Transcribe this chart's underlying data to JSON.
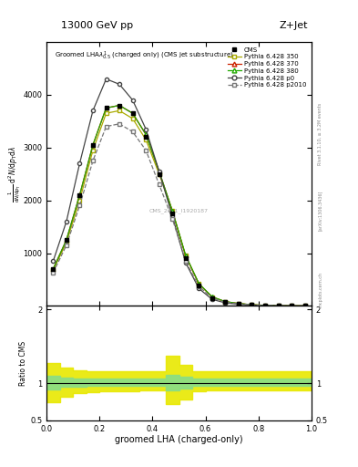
{
  "title_top": "13000 GeV pp",
  "title_right": "Z+Jet",
  "plot_title": "Groomed LHA$\\lambda^{1}_{0.5}$ (charged only) (CMS jet substructure)",
  "xlabel": "groomed LHA (charged-only)",
  "ylabel_ratio": "Ratio to CMS",
  "rivet_label": "Rivet 3.1.10, ≥ 3.2M events",
  "arxiv_label": "[arXiv:1306.3436]",
  "mcplots_label": "mcplots.cern.ch",
  "cms_id_label": "CMS_2021_I1920187",
  "x_data": [
    0.025,
    0.075,
    0.125,
    0.175,
    0.225,
    0.275,
    0.325,
    0.375,
    0.425,
    0.475,
    0.525,
    0.575,
    0.625,
    0.675,
    0.725,
    0.775,
    0.825,
    0.875,
    0.925,
    0.975
  ],
  "cms_y": [
    700,
    1250,
    2100,
    3050,
    3750,
    3800,
    3650,
    3200,
    2500,
    1750,
    900,
    380,
    150,
    70,
    40,
    20,
    10,
    5,
    2,
    0.5
  ],
  "p350_y": [
    680,
    1200,
    2000,
    2950,
    3650,
    3700,
    3550,
    3150,
    2500,
    1800,
    950,
    420,
    170,
    80,
    45,
    22,
    11,
    5,
    2,
    0.5
  ],
  "p370_y": [
    700,
    1250,
    2100,
    3050,
    3750,
    3800,
    3650,
    3250,
    2550,
    1800,
    950,
    420,
    170,
    80,
    45,
    22,
    11,
    5,
    2,
    0.5
  ],
  "p380_y": [
    700,
    1250,
    2100,
    3050,
    3750,
    3800,
    3650,
    3250,
    2550,
    1800,
    960,
    425,
    172,
    82,
    46,
    23,
    11,
    5,
    2,
    0.5
  ],
  "pp0_y": [
    850,
    1600,
    2700,
    3700,
    4300,
    4200,
    3900,
    3350,
    2550,
    1700,
    820,
    330,
    125,
    58,
    32,
    16,
    8,
    4,
    1.5,
    0.5
  ],
  "pp2010_y": [
    630,
    1150,
    1900,
    2750,
    3400,
    3450,
    3300,
    2950,
    2300,
    1650,
    850,
    370,
    150,
    70,
    40,
    20,
    10,
    5,
    2,
    0.5
  ],
  "colors": {
    "cms": "#000000",
    "p350": "#aaaa00",
    "p370": "#cc2200",
    "p380": "#22aa00",
    "pp0": "#444444",
    "pp2010": "#777777"
  },
  "ylim_main": [
    0,
    5000
  ],
  "ylim_ratio": [
    0.5,
    2.05
  ],
  "xlim": [
    0,
    1
  ],
  "yticks_main": [
    1000,
    2000,
    3000,
    4000
  ],
  "yticks_ratio": [
    0.5,
    1.0,
    2.0
  ],
  "yellow_lo": [
    0.75,
    0.82,
    0.87,
    0.88,
    0.89,
    0.89,
    0.89,
    0.9,
    0.91,
    0.72,
    0.78,
    0.89,
    0.9,
    0.9,
    0.9,
    0.9,
    0.9,
    0.9,
    0.9,
    0.9
  ],
  "yellow_hi": [
    1.28,
    1.22,
    1.18,
    1.17,
    1.17,
    1.17,
    1.17,
    1.17,
    1.17,
    1.38,
    1.25,
    1.17,
    1.17,
    1.17,
    1.17,
    1.17,
    1.17,
    1.17,
    1.17,
    1.17
  ],
  "green_lo": [
    0.92,
    0.95,
    0.96,
    0.97,
    0.97,
    0.97,
    0.97,
    0.97,
    0.97,
    0.9,
    0.93,
    0.97,
    0.97,
    0.97,
    0.97,
    0.97,
    0.97,
    0.97,
    0.97,
    0.97
  ],
  "green_hi": [
    1.1,
    1.08,
    1.07,
    1.07,
    1.07,
    1.07,
    1.07,
    1.07,
    1.07,
    1.12,
    1.09,
    1.07,
    1.07,
    1.07,
    1.07,
    1.07,
    1.07,
    1.07,
    1.07,
    1.07
  ]
}
